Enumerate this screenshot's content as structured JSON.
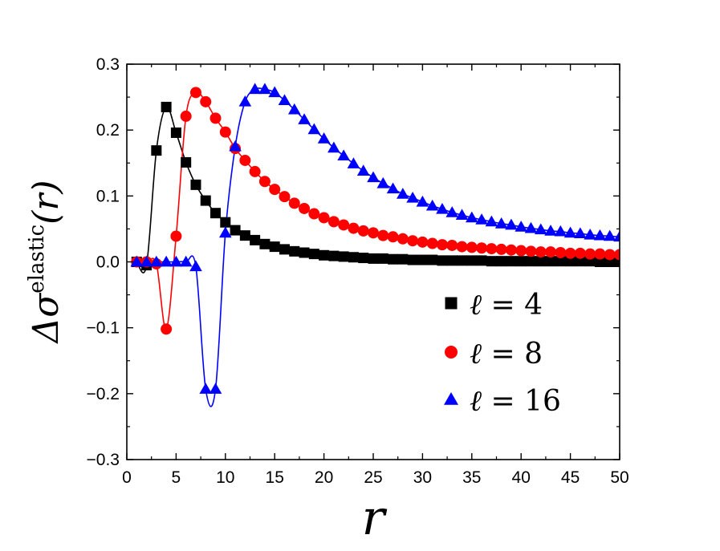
{
  "chart_data": {
    "type": "scatter",
    "xlabel": "r",
    "ylabel": {
      "prefix": "Δσ",
      "superscript": "elastic",
      "argument": "(r)"
    },
    "xlim": [
      0,
      50
    ],
    "ylim": [
      -0.3,
      0.3
    ],
    "xticks": [
      "0",
      "5",
      "10",
      "15",
      "20",
      "25",
      "30",
      "35",
      "40",
      "45",
      "50"
    ],
    "yticks": [
      "-0.3",
      "-0.2",
      "-0.1",
      "0.0",
      "0.1",
      "0.2",
      "0.3"
    ],
    "grid": false,
    "legend_position": "lower-right",
    "series": [
      {
        "name": "ℓ = 4",
        "legend_symbol": "ℓ",
        "legend_value": "4",
        "marker": "square",
        "color": "#000000",
        "x": [
          1,
          2,
          3,
          4,
          5,
          6,
          7,
          8,
          9,
          10,
          11,
          12,
          13,
          14,
          15,
          16,
          17,
          18,
          19,
          20,
          21,
          22,
          23,
          24,
          25,
          26,
          27,
          28,
          29,
          30,
          31,
          32,
          33,
          34,
          35,
          36,
          37,
          38,
          39,
          40,
          41,
          42,
          43,
          44,
          45,
          46,
          47,
          48,
          49,
          50
        ],
        "y": [
          0.0,
          -0.005,
          0.169,
          0.235,
          0.196,
          0.151,
          0.117,
          0.093,
          0.074,
          0.06,
          0.048,
          0.04,
          0.033,
          0.027,
          0.023,
          0.019,
          0.016,
          0.014,
          0.012,
          0.01,
          0.009,
          0.008,
          0.007,
          0.006,
          0.005,
          0.005,
          0.004,
          0.004,
          0.003,
          0.003,
          0.003,
          0.002,
          0.002,
          0.002,
          0.002,
          0.002,
          0.001,
          0.001,
          0.001,
          0.001,
          0.001,
          0.001,
          0.001,
          0.001,
          0.001,
          0.001,
          0.001,
          0.0,
          0.0,
          0.0
        ]
      },
      {
        "name": "ℓ = 8",
        "legend_symbol": "ℓ",
        "legend_value": "8",
        "marker": "circle",
        "color": "#ff0000",
        "x": [
          1,
          2,
          3,
          4,
          5,
          6,
          7,
          8,
          9,
          10,
          11,
          12,
          13,
          14,
          15,
          16,
          17,
          18,
          19,
          20,
          21,
          22,
          23,
          24,
          25,
          26,
          27,
          28,
          29,
          30,
          31,
          32,
          33,
          34,
          35,
          36,
          37,
          38,
          39,
          40,
          41,
          42,
          43,
          44,
          45,
          46,
          47,
          48,
          49,
          50
        ],
        "y": [
          0.0,
          0.0,
          -0.003,
          -0.102,
          0.039,
          0.221,
          0.257,
          0.243,
          0.218,
          0.197,
          0.172,
          0.154,
          0.137,
          0.122,
          0.11,
          0.099,
          0.089,
          0.081,
          0.073,
          0.067,
          0.061,
          0.056,
          0.051,
          0.047,
          0.044,
          0.04,
          0.038,
          0.035,
          0.032,
          0.03,
          0.028,
          0.026,
          0.025,
          0.023,
          0.022,
          0.021,
          0.02,
          0.019,
          0.018,
          0.017,
          0.016,
          0.015,
          0.015,
          0.014,
          0.013,
          0.013,
          0.012,
          0.012,
          0.011,
          0.011
        ]
      },
      {
        "name": "ℓ = 16",
        "legend_symbol": "ℓ",
        "legend_value": "16",
        "marker": "triangle",
        "color": "#0000ff",
        "x": [
          1,
          2,
          3,
          4,
          5,
          6,
          7,
          8,
          9,
          10,
          11,
          12,
          13,
          14,
          15,
          16,
          17,
          18,
          19,
          20,
          21,
          22,
          23,
          24,
          25,
          26,
          27,
          28,
          29,
          30,
          31,
          32,
          33,
          34,
          35,
          36,
          37,
          38,
          39,
          40,
          41,
          42,
          43,
          44,
          45,
          46,
          47,
          48,
          49,
          50
        ],
        "y": [
          0.0,
          0.0,
          0.0,
          0.0,
          0.0,
          0.0,
          -0.007,
          -0.193,
          -0.193,
          0.044,
          0.175,
          0.243,
          0.262,
          0.262,
          0.257,
          0.245,
          0.231,
          0.216,
          0.201,
          0.187,
          0.173,
          0.161,
          0.149,
          0.138,
          0.128,
          0.119,
          0.111,
          0.103,
          0.097,
          0.091,
          0.085,
          0.08,
          0.075,
          0.071,
          0.067,
          0.064,
          0.061,
          0.058,
          0.056,
          0.053,
          0.051,
          0.049,
          0.047,
          0.046,
          0.044,
          0.043,
          0.041,
          0.04,
          0.039,
          0.038
        ]
      }
    ]
  }
}
